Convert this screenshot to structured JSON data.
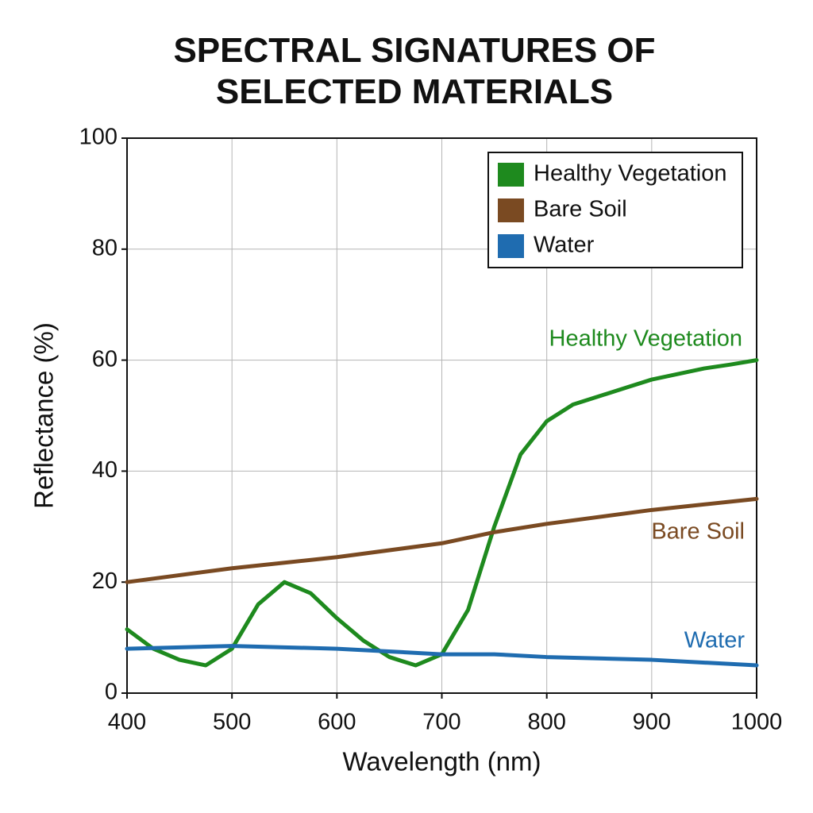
{
  "chart_data": {
    "type": "line",
    "title": "SPECTRAL SIGNATURES OF SELECTED MATERIALS",
    "xlabel": "Wavelength (nm)",
    "ylabel": "Reflectance (%)",
    "xlim": [
      400,
      1000
    ],
    "xticks": [
      400,
      500,
      600,
      700,
      800,
      900,
      1000
    ],
    "ylim": [
      0,
      100
    ],
    "yticks": [
      0,
      20,
      40,
      60,
      80,
      100
    ],
    "grid": true,
    "legend": "upper right",
    "series": [
      {
        "name": "Healthy Vegetation",
        "color": "#1e8a1e",
        "x": [
          400,
          425,
          450,
          475,
          500,
          525,
          550,
          575,
          600,
          625,
          650,
          675,
          700,
          725,
          750,
          775,
          800,
          825,
          850,
          875,
          900,
          925,
          950,
          975,
          1000
        ],
        "values": [
          11.5,
          8,
          6,
          5,
          8,
          16,
          20,
          18,
          13.5,
          9.5,
          6.5,
          5,
          7,
          15,
          30,
          43,
          49,
          52,
          53.5,
          55,
          56.5,
          57.5,
          58.5,
          59.2,
          60
        ]
      },
      {
        "name": "Bare Soil",
        "color": "#7a4a22",
        "x": [
          400,
          500,
          600,
          700,
          750,
          800,
          900,
          1000
        ],
        "values": [
          20,
          22.5,
          24.5,
          27,
          29,
          30.5,
          33,
          35
        ]
      },
      {
        "name": "Water",
        "color": "#1f6cb0",
        "x": [
          400,
          500,
          600,
          700,
          750,
          800,
          900,
          1000
        ],
        "values": [
          8,
          8.5,
          8,
          7,
          7,
          6.5,
          6,
          5
        ]
      }
    ]
  }
}
